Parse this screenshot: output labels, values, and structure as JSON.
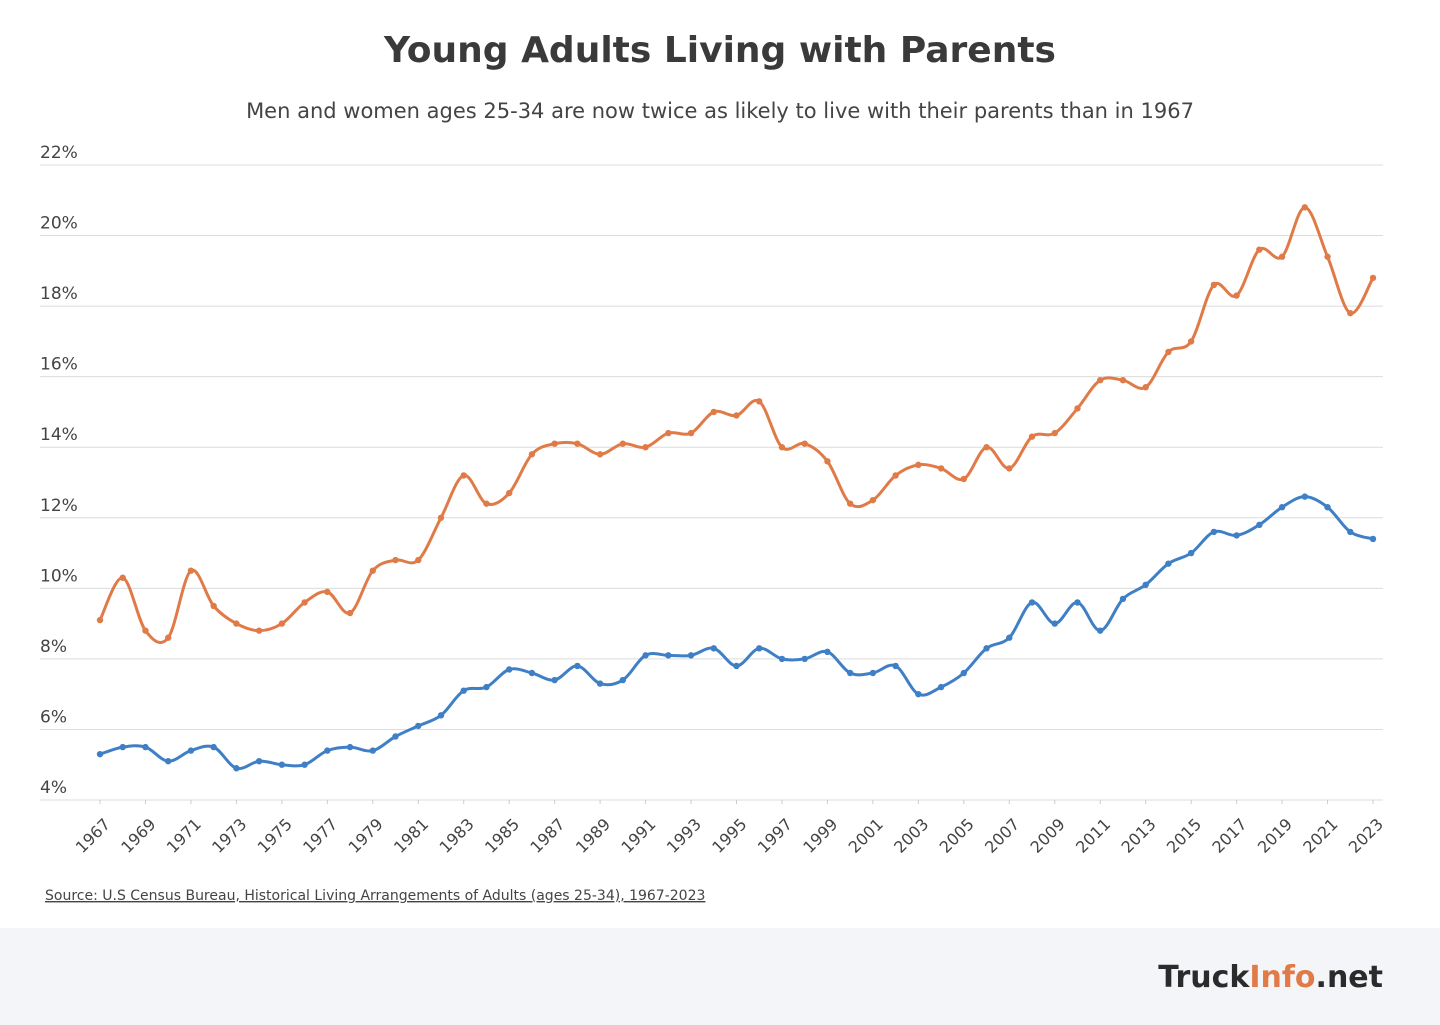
{
  "chart_data": {
    "type": "line",
    "title": "Young Adults Living with Parents",
    "subtitle": "Men and women ages 25-34 are now twice as likely to live with their parents than in 1967",
    "source": "Source: U.S Census Bureau, Historical Living Arrangements of Adults (ages 25-34), 1967-2023",
    "x": [
      1967,
      1968,
      1969,
      1970,
      1971,
      1972,
      1973,
      1974,
      1975,
      1976,
      1977,
      1978,
      1979,
      1980,
      1981,
      1982,
      1983,
      1984,
      1985,
      1986,
      1987,
      1988,
      1989,
      1990,
      1991,
      1992,
      1993,
      1994,
      1995,
      1996,
      1997,
      1998,
      1999,
      2000,
      2001,
      2002,
      2003,
      2004,
      2005,
      2006,
      2007,
      2008,
      2009,
      2010,
      2011,
      2012,
      2013,
      2014,
      2015,
      2016,
      2017,
      2018,
      2019,
      2020,
      2021,
      2022,
      2023
    ],
    "series": [
      {
        "color": "#e07b48",
        "values": [
          9.1,
          10.3,
          8.8,
          8.6,
          10.5,
          9.5,
          9.0,
          8.8,
          9.0,
          9.6,
          9.9,
          9.3,
          10.5,
          10.8,
          10.8,
          12.0,
          13.2,
          12.4,
          12.7,
          13.8,
          14.1,
          14.1,
          13.8,
          14.1,
          14.0,
          14.4,
          14.4,
          15.0,
          14.9,
          15.3,
          14.0,
          14.1,
          13.6,
          12.4,
          12.5,
          13.2,
          13.5,
          13.4,
          13.1,
          14.0,
          13.4,
          14.3,
          14.4,
          15.1,
          15.9,
          15.9,
          15.7,
          16.7,
          17.0,
          18.6,
          18.3,
          19.6,
          19.4,
          20.8,
          19.4,
          17.8,
          18.8
        ]
      },
      {
        "color": "#3f7fc6",
        "values": [
          5.3,
          5.5,
          5.5,
          5.1,
          5.4,
          5.5,
          4.9,
          5.1,
          5.0,
          5.0,
          5.4,
          5.5,
          5.4,
          5.8,
          6.1,
          6.4,
          7.1,
          7.2,
          7.7,
          7.6,
          7.4,
          7.8,
          7.3,
          7.4,
          8.1,
          8.1,
          8.1,
          8.3,
          7.8,
          8.3,
          8.0,
          8.0,
          8.2,
          7.6,
          7.6,
          7.8,
          7.0,
          7.2,
          7.6,
          8.3,
          8.6,
          9.6,
          9.0,
          9.6,
          8.8,
          9.7,
          10.1,
          10.7,
          11.0,
          11.6,
          11.5,
          11.8,
          12.3,
          12.6,
          12.3,
          11.6,
          11.4
        ]
      }
    ],
    "xlim": [
      1967,
      2023
    ],
    "xticks": [
      1967,
      1969,
      1971,
      1973,
      1975,
      1977,
      1979,
      1981,
      1983,
      1985,
      1987,
      1989,
      1991,
      1993,
      1995,
      1997,
      1999,
      2001,
      2003,
      2005,
      2007,
      2009,
      2011,
      2013,
      2015,
      2017,
      2019,
      2021,
      2023
    ],
    "ylim": [
      4,
      22
    ],
    "yticks": [
      {
        "value": 4,
        "label": "4%"
      },
      {
        "value": 6,
        "label": "6%"
      },
      {
        "value": 8,
        "label": "8%"
      },
      {
        "value": 10,
        "label": "10%"
      },
      {
        "value": 12,
        "label": "12%"
      },
      {
        "value": 14,
        "label": "14%"
      },
      {
        "value": 16,
        "label": "16%"
      },
      {
        "value": 18,
        "label": "18%"
      },
      {
        "value": 20,
        "label": "20%"
      },
      {
        "value": 22,
        "label": "22%"
      }
    ],
    "grid": true
  },
  "footer": {
    "logo_parts": [
      "Truck",
      "Info",
      ".net"
    ]
  }
}
